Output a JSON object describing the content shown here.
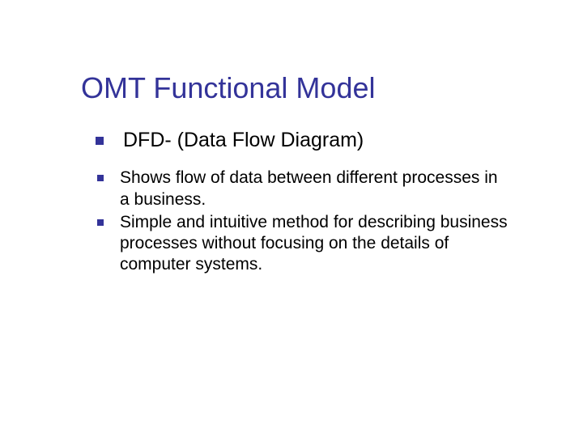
{
  "slide": {
    "title": "OMT Functional Model",
    "title_color": "#333399",
    "title_fontsize": 36,
    "background_color": "#ffffff",
    "bullet_color": "#333399",
    "text_color": "#000000",
    "bullets": {
      "level1": [
        {
          "text": "DFD- (Data Flow Diagram)"
        }
      ],
      "level2": [
        {
          "text": "Shows flow of data between different processes in a business."
        },
        {
          "text": "Simple and intuitive method for describing business processes without focusing on the details of computer systems."
        }
      ]
    },
    "fontsizes": {
      "level1": 25,
      "level2": 21
    }
  }
}
